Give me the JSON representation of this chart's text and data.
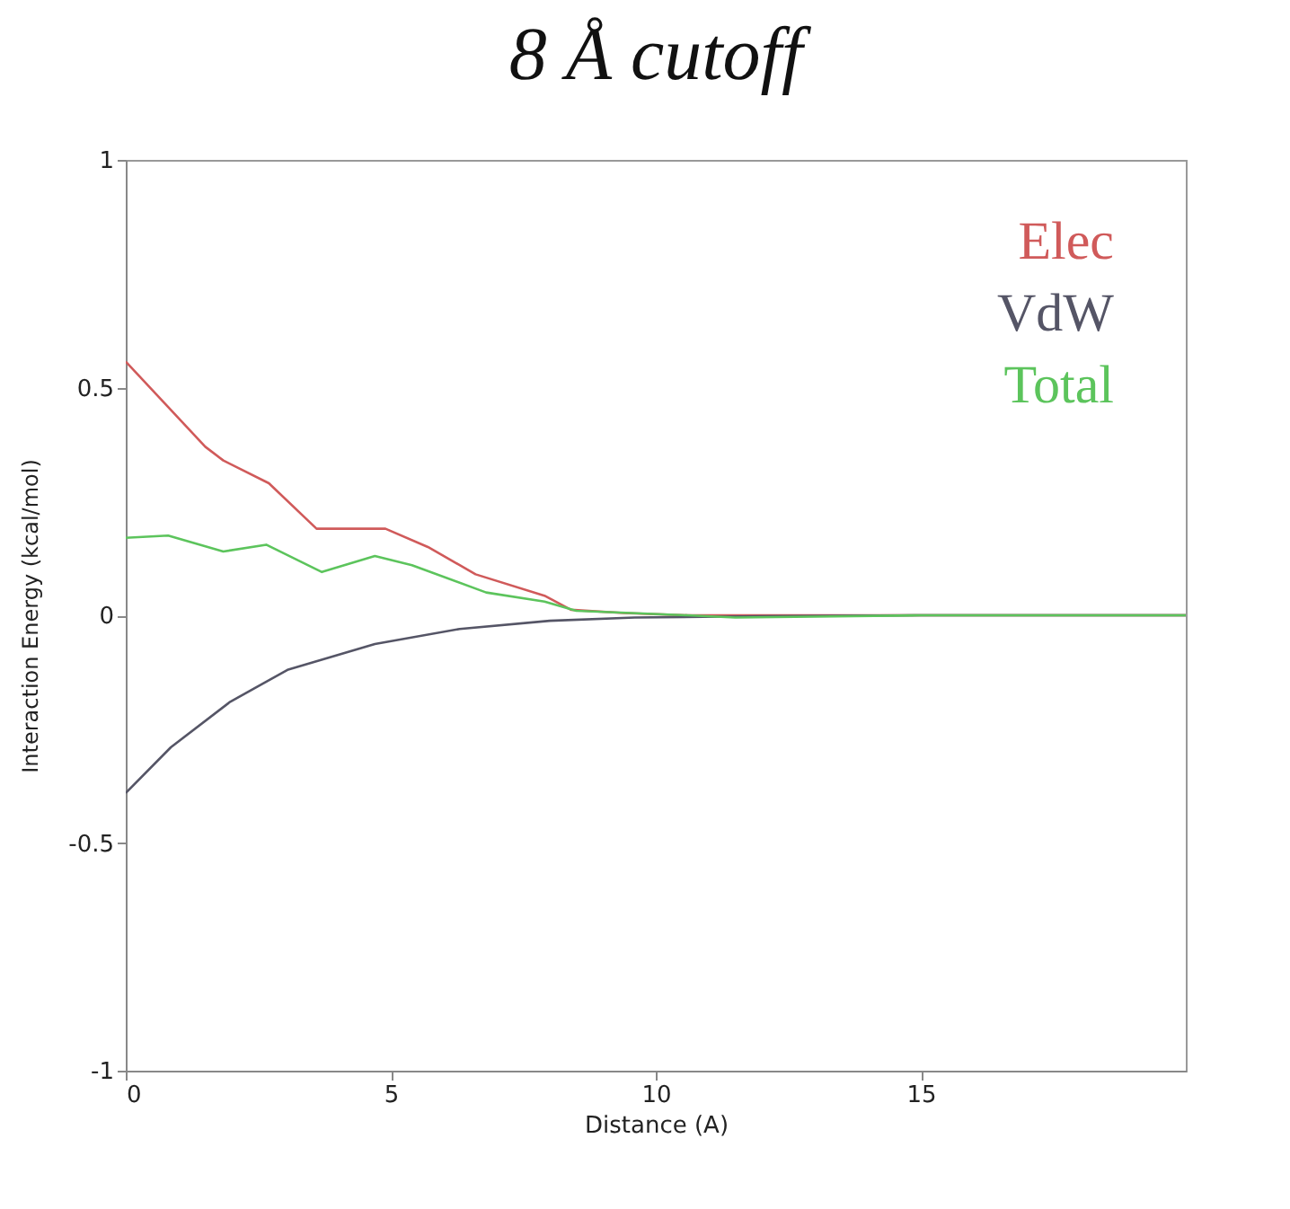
{
  "chart_data": {
    "type": "line",
    "title": "8 Å cutoff",
    "xlabel": "Distance (A)",
    "ylabel": "Interaction Energy (kcal/mol)",
    "xlim": [
      0,
      20
    ],
    "ylim": [
      -1,
      1
    ],
    "xticks": [
      0,
      5,
      10,
      15
    ],
    "yticks": [
      -1,
      -0.5,
      0,
      0.5,
      1
    ],
    "grid": false,
    "legend": "top right",
    "marker": "none",
    "line_style": "solid",
    "series": [
      {
        "name": "Elec",
        "color": "#d05a5a",
        "x": [
          0,
          1.5,
          1.84,
          2.7,
          3.6,
          3.8,
          4.9,
          5.7,
          6.6,
          7.9,
          8.4,
          9.4,
          10.6,
          12,
          15,
          20
        ],
        "values": [
          0.557,
          0.37,
          0.34,
          0.29,
          0.19,
          0.19,
          0.19,
          0.15,
          0.09,
          0.043,
          0.012,
          0.005,
          0,
          0,
          0,
          0
        ]
      },
      {
        "name": "VdW",
        "color": "#555566",
        "x": [
          0,
          0.85,
          1.97,
          3.05,
          4.7,
          6.3,
          8,
          9.6,
          12,
          15,
          20
        ],
        "values": [
          -0.39,
          -0.29,
          -0.19,
          -0.12,
          -0.063,
          -0.03,
          -0.012,
          -0.005,
          -0.002,
          0,
          0
        ]
      },
      {
        "name": "Total",
        "color": "#5cc45c",
        "x": [
          0,
          0.8,
          1.84,
          2.65,
          3.7,
          4.7,
          5.4,
          6.8,
          7.9,
          8.5,
          10.6,
          11.5,
          13,
          15,
          20
        ],
        "values": [
          0.17,
          0.175,
          0.14,
          0.155,
          0.095,
          0.13,
          0.11,
          0.05,
          0.03,
          0.01,
          0,
          -0.005,
          -0.003,
          0,
          0
        ]
      }
    ]
  }
}
